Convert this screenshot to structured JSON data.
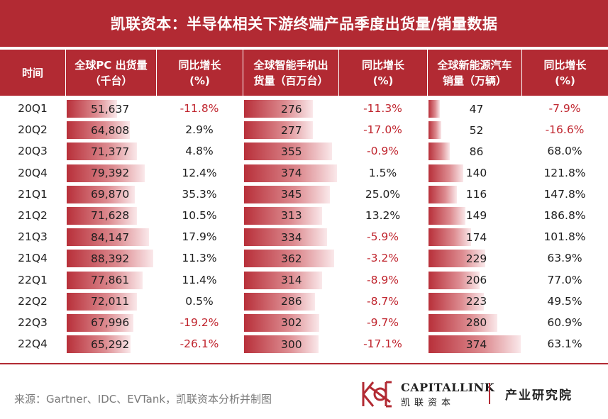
{
  "title": "凯联资本：半导体相关下游终端产品季度出货量/销量数据",
  "headers": {
    "time": "时间",
    "pc_l1": "全球PC 出货量",
    "pc_l2": "（千台）",
    "pc_yoy_l1": "同比增长",
    "pc_yoy_l2": "(%)",
    "phone_l1": "全球智能手机出",
    "phone_l2": "货量（百万台）",
    "phone_yoy_l1": "同比增长",
    "phone_yoy_l2": "(%)",
    "ev_l1": "全球新能源汽车",
    "ev_l2": "销量（万辆）",
    "ev_yoy_l1": "同比增长",
    "ev_yoy_l2": "(%)"
  },
  "chart_data": {
    "type": "table",
    "columns": [
      "时间",
      "全球PC 出货量（千台）",
      "同比增长(%)",
      "全球智能手机出货量（百万台）",
      "同比增长(%)",
      "全球新能源汽车销量（万辆）",
      "同比增长(%)"
    ],
    "rows": [
      {
        "q": "20Q1",
        "pc": "51,637",
        "pc_v": 51637,
        "pc_yoy": "-11.8%",
        "phone": "276",
        "phone_v": 276,
        "phone_yoy": "-11.3%",
        "ev": "47",
        "ev_v": 47,
        "ev_yoy": "-7.9%"
      },
      {
        "q": "20Q2",
        "pc": "64,808",
        "pc_v": 64808,
        "pc_yoy": "2.9%",
        "phone": "277",
        "phone_v": 277,
        "phone_yoy": "-17.0%",
        "ev": "52",
        "ev_v": 52,
        "ev_yoy": "-16.6%"
      },
      {
        "q": "20Q3",
        "pc": "71,377",
        "pc_v": 71377,
        "pc_yoy": "4.8%",
        "phone": "355",
        "phone_v": 355,
        "phone_yoy": "-0.9%",
        "ev": "86",
        "ev_v": 86,
        "ev_yoy": "68.0%"
      },
      {
        "q": "20Q4",
        "pc": "79,392",
        "pc_v": 79392,
        "pc_yoy": "12.4%",
        "phone": "374",
        "phone_v": 374,
        "phone_yoy": "1.5%",
        "ev": "140",
        "ev_v": 140,
        "ev_yoy": "121.8%"
      },
      {
        "q": "21Q1",
        "pc": "69,870",
        "pc_v": 69870,
        "pc_yoy": "35.3%",
        "phone": "345",
        "phone_v": 345,
        "phone_yoy": "25.0%",
        "ev": "116",
        "ev_v": 116,
        "ev_yoy": "147.8%"
      },
      {
        "q": "21Q2",
        "pc": "71,628",
        "pc_v": 71628,
        "pc_yoy": "10.5%",
        "phone": "313",
        "phone_v": 313,
        "phone_yoy": "13.2%",
        "ev": "149",
        "ev_v": 149,
        "ev_yoy": "186.8%"
      },
      {
        "q": "21Q3",
        "pc": "84,147",
        "pc_v": 84147,
        "pc_yoy": "17.9%",
        "phone": "334",
        "phone_v": 334,
        "phone_yoy": "-5.9%",
        "ev": "174",
        "ev_v": 174,
        "ev_yoy": "101.8%"
      },
      {
        "q": "21Q4",
        "pc": "88,392",
        "pc_v": 88392,
        "pc_yoy": "11.3%",
        "phone": "362",
        "phone_v": 362,
        "phone_yoy": "-3.2%",
        "ev": "229",
        "ev_v": 229,
        "ev_yoy": "63.9%"
      },
      {
        "q": "22Q1",
        "pc": "77,861",
        "pc_v": 77861,
        "pc_yoy": "11.4%",
        "phone": "314",
        "phone_v": 314,
        "phone_yoy": "-8.9%",
        "ev": "206",
        "ev_v": 206,
        "ev_yoy": "77.0%"
      },
      {
        "q": "22Q2",
        "pc": "72,011",
        "pc_v": 72011,
        "pc_yoy": "0.5%",
        "phone": "286",
        "phone_v": 286,
        "phone_yoy": "-8.7%",
        "ev": "223",
        "ev_v": 223,
        "ev_yoy": "49.5%"
      },
      {
        "q": "22Q3",
        "pc": "67,996",
        "pc_v": 67996,
        "pc_yoy": "-19.2%",
        "phone": "302",
        "phone_v": 302,
        "phone_yoy": "-9.7%",
        "ev": "280",
        "ev_v": 280,
        "ev_yoy": "60.9%"
      },
      {
        "q": "22Q4",
        "pc": "65,292",
        "pc_v": 65292,
        "pc_yoy": "-26.1%",
        "phone": "300",
        "phone_v": 300,
        "phone_yoy": "-17.1%",
        "ev": "374",
        "ev_v": 374,
        "ev_yoy": "63.1%"
      }
    ]
  },
  "footer": {
    "source": "来源：Gartner、IDC、EVTank，凯联资本分析并制图",
    "logo_en": "CAPITALLINK",
    "logo_cn": "凯联资本",
    "institute": "产业研究院"
  },
  "colors": {
    "brand_red": "#b22a33",
    "negative_text": "#c0252e"
  }
}
